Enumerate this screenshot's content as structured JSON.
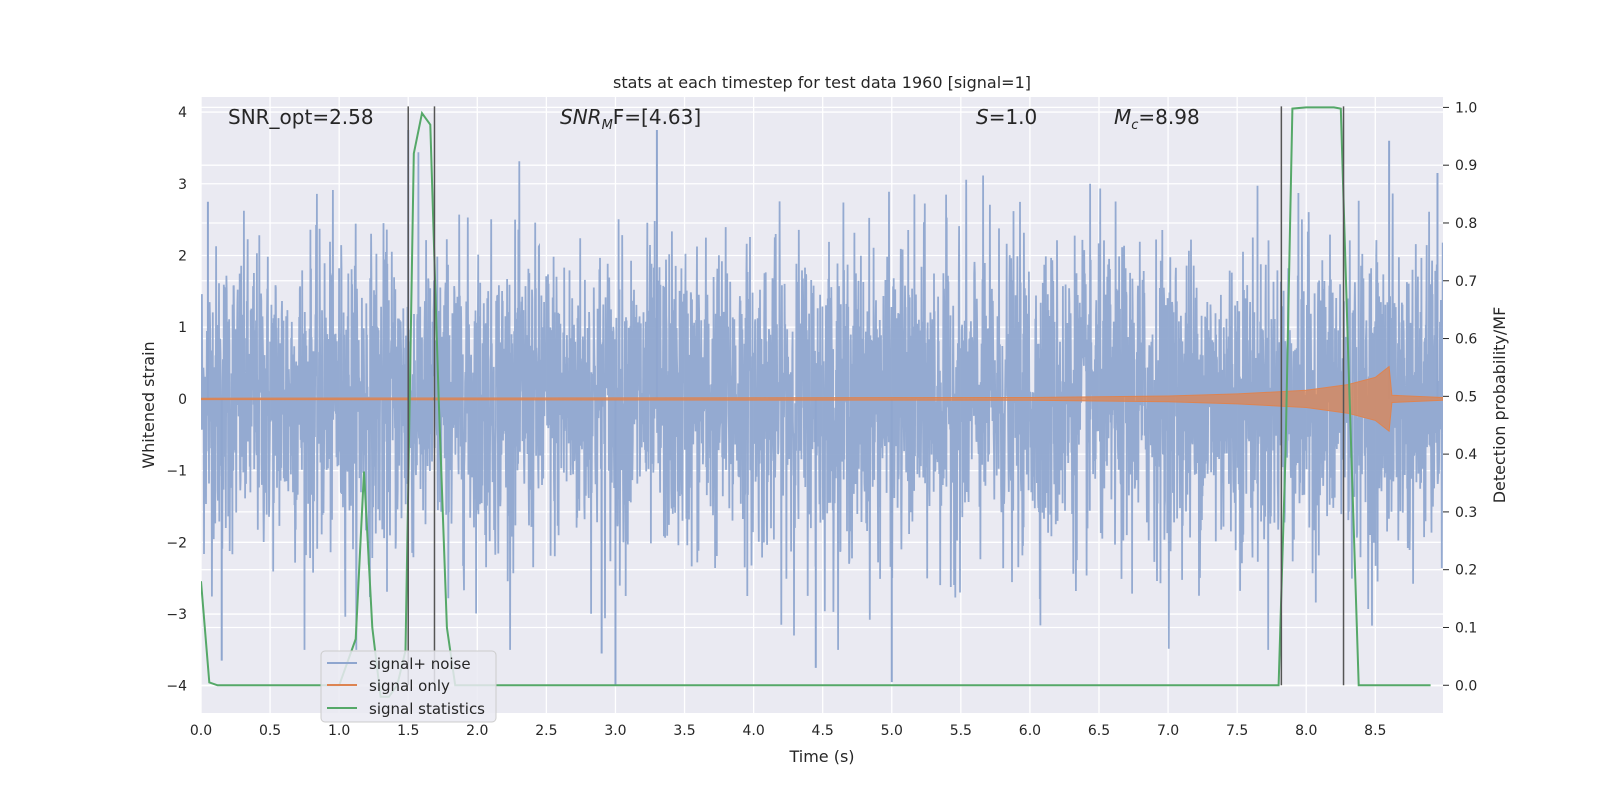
{
  "chart_data": {
    "type": "line",
    "title": "stats at each timestep for test data 1960 [signal=1]",
    "xlabel": "Time (s)",
    "ylabel": "Whitened strain",
    "y2label": "Detection probability/MF",
    "xlim": [
      0,
      8.99
    ],
    "ylim": [
      -4.38,
      4.21
    ],
    "y2lim": [
      -0.048,
      1.018
    ],
    "xticks": [
      "0.0",
      "0.5",
      "1.0",
      "1.5",
      "2.0",
      "2.5",
      "3.0",
      "3.5",
      "4.0",
      "4.5",
      "5.0",
      "5.5",
      "6.0",
      "6.5",
      "7.0",
      "7.5",
      "8.0",
      "8.5"
    ],
    "yticks": [
      "4",
      "3",
      "2",
      "1",
      "0",
      "−1",
      "−2",
      "−3",
      "−4"
    ],
    "y2ticks": [
      "1.0",
      "0.9",
      "0.8",
      "0.7",
      "0.6",
      "0.5",
      "0.4",
      "0.3",
      "0.2",
      "0.1",
      "0.0"
    ],
    "grid": true,
    "legend_position": "lower-left",
    "annotations": {
      "snr_opt": "SNR_opt=2.58",
      "snr_mf_main": "SNR",
      "snr_mf_sub": "M",
      "snr_mf_rest": "F=[4.63]",
      "s_main": "S",
      "s_rest": "=1.0",
      "mc_main": "M",
      "mc_sub": "c",
      "mc_rest": "=8.98"
    },
    "series": [
      {
        "name": "signal+ noise",
        "color": "#8fa6cf",
        "description": "whitened strain noise, approximately Gaussian, spikes up to about +3.8 and down to about -4.0",
        "peaks": [
          [
            0.05,
            2.75
          ],
          [
            0.15,
            -3.65
          ],
          [
            1.5,
            3.75
          ],
          [
            2.9,
            -3.55
          ],
          [
            3.0,
            -4.0
          ],
          [
            3.3,
            3.75
          ],
          [
            4.45,
            -3.75
          ],
          [
            5.0,
            -3.95
          ],
          [
            8.6,
            3.6
          ],
          [
            8.95,
            3.15
          ]
        ]
      },
      {
        "name": "signal only",
        "color": "#dd8452",
        "description": "chirp signal near zero, amplitude growing near t=8.6",
        "envelope": [
          [
            0.0,
            0.01
          ],
          [
            6.0,
            0.02
          ],
          [
            7.0,
            0.04
          ],
          [
            7.5,
            0.07
          ],
          [
            8.0,
            0.12
          ],
          [
            8.3,
            0.2
          ],
          [
            8.5,
            0.3
          ],
          [
            8.6,
            0.45
          ],
          [
            8.62,
            0.05
          ],
          [
            8.99,
            0.02
          ]
        ]
      },
      {
        "name": "signal statistics",
        "color": "#55a868",
        "axis": "right",
        "x": [
          0.0,
          0.06,
          0.12,
          0.5,
          1.0,
          1.12,
          1.18,
          1.24,
          1.3,
          1.36,
          1.42,
          1.48,
          1.54,
          1.6,
          1.66,
          1.72,
          1.78,
          1.84,
          2.0,
          3.0,
          5.0,
          7.0,
          7.8,
          7.85,
          7.9,
          8.0,
          8.1,
          8.2,
          8.25,
          8.3,
          8.38,
          8.5,
          8.9
        ],
        "y": [
          0.18,
          0.005,
          0.0,
          0.0,
          0.0,
          0.08,
          0.37,
          0.1,
          -0.02,
          -0.02,
          0.0,
          0.06,
          0.92,
          0.99,
          0.97,
          0.5,
          0.1,
          0.0,
          0.0,
          0.0,
          0.0,
          0.0,
          0.0,
          0.4,
          0.998,
          1.0,
          1.0,
          1.0,
          0.998,
          0.6,
          0.0,
          0.0,
          0.0
        ]
      }
    ],
    "vlines": [
      1.5,
      1.69,
      7.82,
      8.27
    ]
  }
}
